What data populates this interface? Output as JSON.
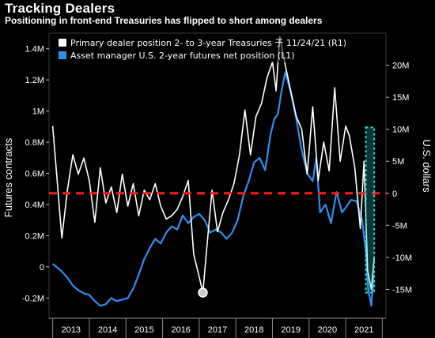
{
  "header": {
    "title": "Tracking Dealers",
    "subtitle": "Positioning in front-end Treasuries has flipped to short among dealers"
  },
  "colors": {
    "background": "#000000",
    "dealer_line": "#ffffff",
    "asset_manager_line": "#2f8ff0",
    "zero_line": "#ff1a1a",
    "highlight_box": "#33d6d6"
  },
  "chart_data": {
    "type": "line",
    "title": "Tracking Dealers",
    "subtitle": "Positioning in front-end Treasuries has flipped to short among dealers",
    "x_ticks": [
      "2013",
      "2014",
      "2015",
      "2016",
      "2017",
      "2018",
      "2019",
      "2020",
      "2021"
    ],
    "x_range": [
      2012.9,
      2022.1
    ],
    "left_axis": {
      "label": "Futures contracts",
      "ticks": [
        "-0.2M",
        "0",
        "0.2M",
        "0.4M",
        "0.6M",
        "0.8M",
        "1M",
        "1.2M",
        "1.4M"
      ],
      "range": [
        -0.33,
        1.5
      ]
    },
    "right_axis": {
      "label": "U.S. dollars",
      "ticks": [
        "-15M",
        "-10M",
        "-5M",
        "0",
        "5M",
        "10M",
        "15M",
        "20M"
      ],
      "range": [
        -19.5,
        25
      ]
    },
    "reference_line": {
      "axis": "right",
      "value": 0,
      "style": "dashed"
    },
    "highlight": {
      "x_range": [
        2021.55,
        2021.78
      ],
      "y_range_right": [
        -15.5,
        10.3
      ]
    },
    "series": [
      {
        "name": "Primary dealer position 2- to 3-year Treasuries 于 11/24/21 (R1)",
        "axis": "right",
        "color": "#ffffff",
        "x": [
          2013.0,
          2013.1,
          2013.25,
          2013.4,
          2013.55,
          2013.7,
          2013.85,
          2014.0,
          2014.15,
          2014.3,
          2014.45,
          2014.6,
          2014.75,
          2014.9,
          2015.05,
          2015.2,
          2015.35,
          2015.5,
          2015.65,
          2015.8,
          2015.95,
          2016.1,
          2016.25,
          2016.4,
          2016.55,
          2016.7,
          2016.85,
          2017.0,
          2017.1,
          2017.2,
          2017.35,
          2017.5,
          2017.65,
          2017.8,
          2017.95,
          2018.1,
          2018.25,
          2018.4,
          2018.55,
          2018.7,
          2018.85,
          2019.0,
          2019.1,
          2019.2,
          2019.35,
          2019.5,
          2019.65,
          2019.8,
          2019.95,
          2020.1,
          2020.25,
          2020.4,
          2020.55,
          2020.7,
          2020.85,
          2021.0,
          2021.1,
          2021.25,
          2021.4,
          2021.5,
          2021.6,
          2021.7,
          2021.78
        ],
        "values": [
          10.5,
          3.5,
          -7.0,
          0.5,
          6.0,
          3.0,
          5.5,
          2.0,
          -4.5,
          4.0,
          -1.5,
          1.0,
          -3.0,
          3.0,
          -2.0,
          1.5,
          -3.5,
          0.5,
          -1.0,
          1.5,
          -2.0,
          -4.0,
          -3.5,
          -2.5,
          -0.5,
          2.0,
          -9.5,
          -13.0,
          -15.5,
          -9.0,
          0.5,
          -6.0,
          -3.0,
          -1.0,
          1.5,
          6.0,
          13.0,
          6.0,
          12.0,
          14.0,
          18.0,
          20.5,
          16.0,
          24.5,
          20.0,
          16.0,
          12.0,
          10.0,
          3.0,
          13.5,
          2.0,
          8.0,
          3.5,
          16.5,
          5.0,
          10.5,
          9.0,
          4.0,
          -5.5,
          5.0,
          -12.0,
          -15.0,
          -10.0
        ]
      },
      {
        "name": "Asset manager U.S. 2-year futures net position (L1)",
        "axis": "left",
        "color": "#2f8ff0",
        "x": [
          2013.0,
          2013.1,
          2013.25,
          2013.4,
          2013.55,
          2013.7,
          2013.85,
          2014.0,
          2014.15,
          2014.3,
          2014.45,
          2014.6,
          2014.75,
          2014.9,
          2015.05,
          2015.2,
          2015.35,
          2015.5,
          2015.65,
          2015.8,
          2015.95,
          2016.1,
          2016.25,
          2016.4,
          2016.55,
          2016.7,
          2016.85,
          2017.0,
          2017.15,
          2017.3,
          2017.45,
          2017.6,
          2017.75,
          2017.9,
          2018.05,
          2018.2,
          2018.35,
          2018.5,
          2018.65,
          2018.8,
          2018.95,
          2019.05,
          2019.15,
          2019.25,
          2019.35,
          2019.5,
          2019.65,
          2019.8,
          2019.95,
          2020.1,
          2020.2,
          2020.3,
          2020.45,
          2020.6,
          2020.75,
          2020.9,
          2021.0,
          2021.15,
          2021.3,
          2021.45,
          2021.55,
          2021.62,
          2021.7,
          2021.76
        ],
        "values": [
          0.02,
          0.0,
          -0.03,
          -0.07,
          -0.12,
          -0.15,
          -0.17,
          -0.18,
          -0.22,
          -0.25,
          -0.24,
          -0.2,
          -0.22,
          -0.21,
          -0.2,
          -0.14,
          -0.05,
          0.05,
          0.12,
          0.18,
          0.15,
          0.22,
          0.26,
          0.24,
          0.33,
          0.28,
          0.32,
          0.34,
          0.3,
          0.22,
          0.24,
          0.22,
          0.18,
          0.22,
          0.3,
          0.45,
          0.55,
          0.67,
          0.7,
          0.62,
          0.85,
          0.95,
          0.98,
          1.13,
          1.25,
          1.12,
          0.95,
          0.75,
          0.6,
          0.55,
          0.7,
          0.35,
          0.4,
          0.28,
          0.48,
          0.35,
          0.38,
          0.43,
          0.42,
          0.3,
          0.1,
          -0.15,
          -0.25,
          -0.05
        ]
      }
    ]
  }
}
